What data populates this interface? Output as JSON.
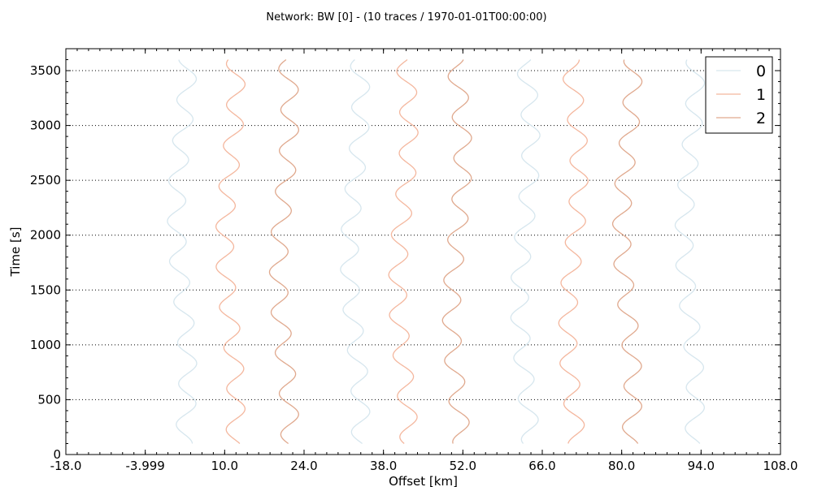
{
  "chart_data": {
    "type": "line",
    "title": "Network: BW [0] - (10 traces / 1970-01-01T00:00:00)",
    "xlabel": "Offset [km]",
    "ylabel": "Time [s]",
    "xlim": [
      -18.0,
      108.0
    ],
    "ylim": [
      0,
      3700
    ],
    "xticks": [
      -18.0,
      -3.999,
      10.0,
      24.0,
      38.0,
      52.0,
      66.0,
      80.0,
      94.0,
      108.0
    ],
    "xtick_labels": [
      "-18.0",
      "-3.999",
      "10.0",
      "24.0",
      "38.0",
      "52.0",
      "66.0",
      "80.0",
      "94.0",
      "108.0"
    ],
    "yticks": [
      0,
      500,
      1000,
      1500,
      2000,
      2500,
      3000,
      3500
    ],
    "ytick_labels": [
      "0",
      "500",
      "1000",
      "1500",
      "2000",
      "2500",
      "3000",
      "3500"
    ],
    "grid": "y-dotted",
    "legend_position": "top-right",
    "time_range": [
      100,
      3600
    ],
    "series": [
      {
        "name": "0",
        "color": "#d6e6ee",
        "traces": [
          {
            "offset": 2.5,
            "amplitude": 1.6,
            "phase": 0.0,
            "drift": 1.0
          },
          {
            "offset": 33.0,
            "amplitude": 1.6,
            "phase": 1.2,
            "drift": 1.0
          },
          {
            "offset": 63.0,
            "amplitude": 1.6,
            "phase": 2.4,
            "drift": 1.0
          },
          {
            "offset": 92.0,
            "amplitude": 1.6,
            "phase": 0.6,
            "drift": 1.0
          }
        ]
      },
      {
        "name": "1",
        "color": "#f4b79e",
        "traces": [
          {
            "offset": 11.0,
            "amplitude": 1.6,
            "phase": 0.8,
            "drift": 1.0
          },
          {
            "offset": 41.5,
            "amplitude": 1.6,
            "phase": 2.0,
            "drift": 1.0
          },
          {
            "offset": 71.5,
            "amplitude": 1.6,
            "phase": 3.2,
            "drift": 1.0
          }
        ]
      },
      {
        "name": "2",
        "color": "#e0a98e",
        "traces": [
          {
            "offset": 20.5,
            "amplitude": 1.6,
            "phase": 1.6,
            "drift": 1.0
          },
          {
            "offset": 51.0,
            "amplitude": 1.6,
            "phase": 2.8,
            "drift": 1.0
          },
          {
            "offset": 81.0,
            "amplitude": 1.6,
            "phase": 0.4,
            "drift": 1.0
          }
        ]
      }
    ]
  }
}
